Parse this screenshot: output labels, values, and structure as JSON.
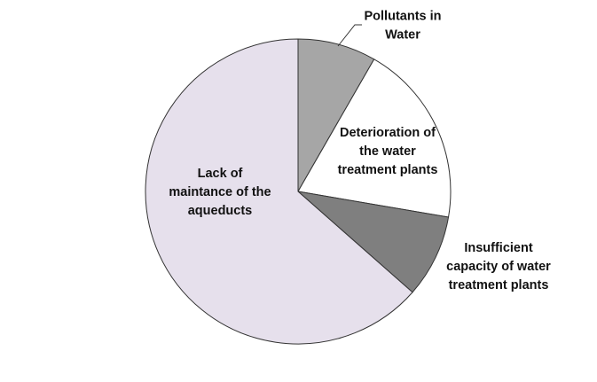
{
  "chart_data": {
    "type": "pie",
    "title": "",
    "slices": [
      {
        "label_lines": [
          "Pollutants in",
          "Water"
        ],
        "value": 8.3,
        "color": "#a6a6a6",
        "label_position": "outside"
      },
      {
        "label_lines": [
          "Deterioration of",
          "the water",
          "treatment plants"
        ],
        "value": 19.4,
        "color": "#ffffff",
        "label_position": "inside"
      },
      {
        "label_lines": [
          "Insufficient",
          "capacity of water",
          "treatment plants"
        ],
        "value": 8.8,
        "color": "#7f7f7f",
        "label_position": "outside"
      },
      {
        "label_lines": [
          "Lack of",
          "maintance of the",
          "aqueducts"
        ],
        "value": 63.5,
        "color": "#e6e0ec",
        "label_position": "inside"
      }
    ],
    "start_angle_deg": 0,
    "direction": "clockwise",
    "outline_color": "#333333"
  }
}
